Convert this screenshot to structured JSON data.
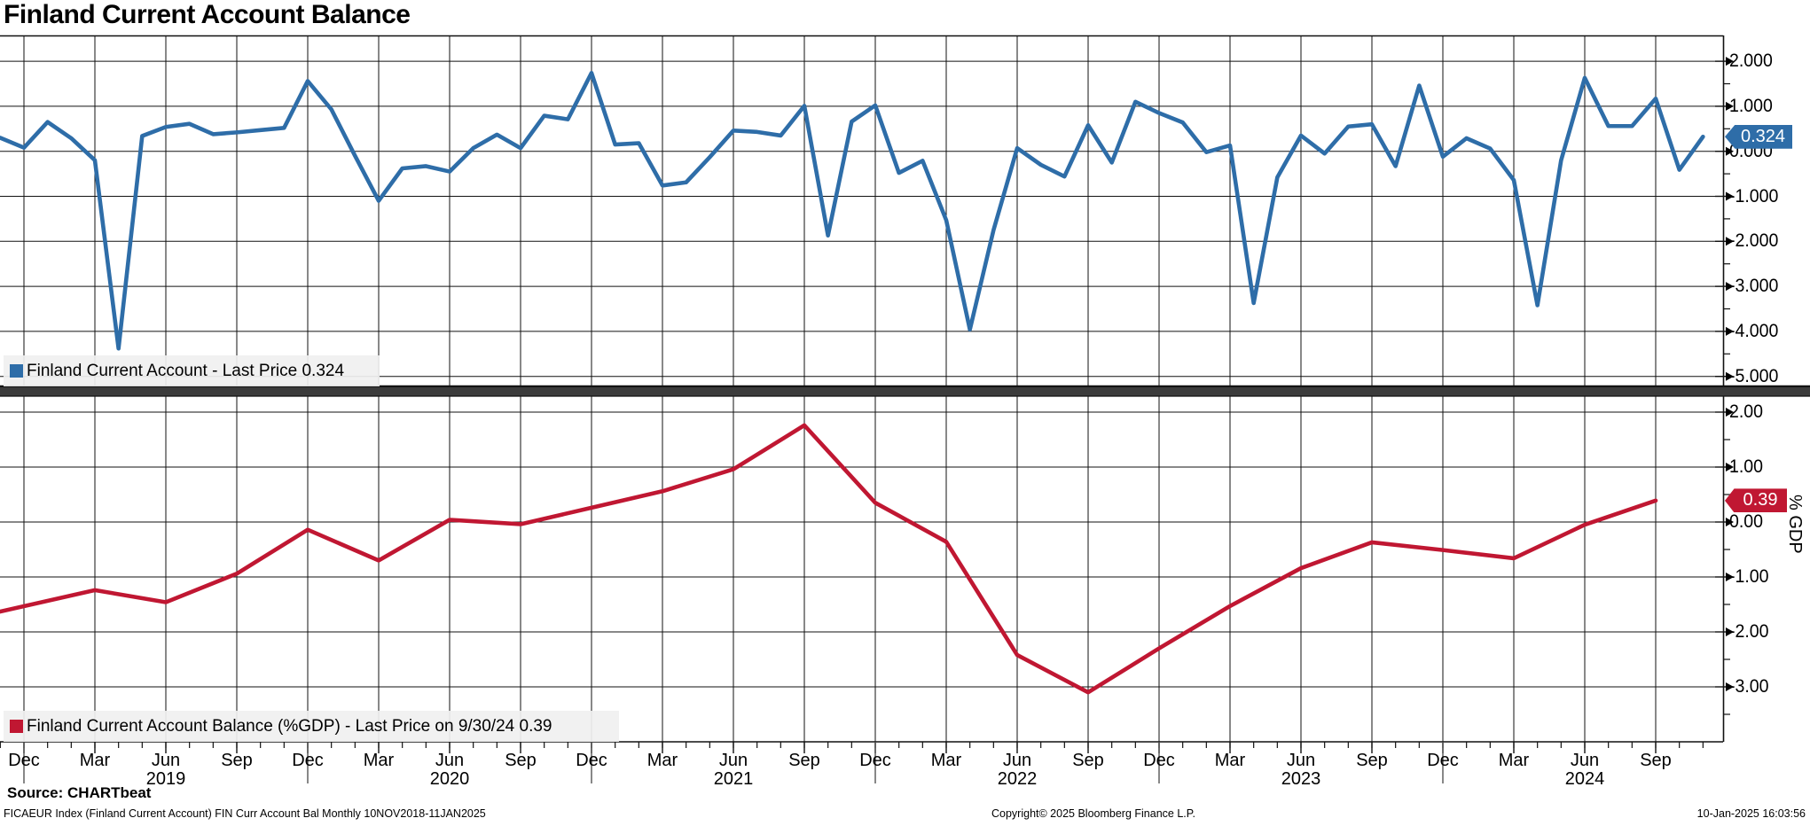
{
  "title": "Finland Current Account Balance",
  "colors": {
    "blue_line": "#2e6da8",
    "red_line": "#c01732",
    "grid": "#111111",
    "separator_band": "#3b3b3b",
    "legend_bg": "#f0f0f0"
  },
  "top_panel": {
    "legend": "Finland Current Account - Last Price 0.324",
    "axis_ticks": [
      "2.000",
      "1.000",
      "0.000",
      "-1.000",
      "-2.000",
      "-3.000",
      "-4.000",
      "-5.000"
    ],
    "axis_tick_values": [
      2,
      1,
      0,
      -1,
      -2,
      -3,
      -4,
      -5
    ],
    "badge": "0.324",
    "badge_value": 0.324
  },
  "bottom_panel": {
    "legend": "Finland Current Account Balance (%GDP) - Last Price on 9/30/24 0.39",
    "axis_ticks": [
      "2.00",
      "1.00",
      "0.00",
      "-1.00",
      "-2.00",
      "-3.00"
    ],
    "axis_tick_values": [
      2,
      1,
      0,
      -1,
      -2,
      -3
    ],
    "badge": "0.39",
    "badge_value": 0.39,
    "axis_label": "% GDP"
  },
  "x_axis": {
    "quarter_labels": [
      "Dec",
      "Mar",
      "Jun",
      "Sep",
      "Dec",
      "Mar",
      "Jun",
      "Sep",
      "Dec",
      "Mar",
      "Jun",
      "Sep",
      "Dec",
      "Mar",
      "Jun",
      "Sep",
      "Dec",
      "Mar",
      "Jun",
      "Sep",
      "Dec",
      "Mar",
      "Jun",
      "Sep"
    ],
    "year_labels": [
      "2019",
      "2020",
      "2021",
      "2022",
      "2023",
      "2024"
    ]
  },
  "footer": {
    "source": "Source: CHARTbeat",
    "ticker_line": "FICAEUR Index (Finland Current Account) FIN Curr Account Bal  Monthly 10NOV2018-11JAN2025",
    "copyright": "Copyright© 2025 Bloomberg Finance L.P.",
    "timestamp": "10-Jan-2025 16:03:56"
  },
  "chart_data": [
    {
      "type": "line",
      "name": "Finland Current Account",
      "frequency": "monthly",
      "start": "Nov 2018",
      "end": "Nov 2024",
      "last_price": 0.324,
      "ylim": [
        -5.28,
        2.57
      ],
      "legend_position": "bottom-left",
      "grid": true,
      "values": [
        0.3,
        0.08,
        0.65,
        0.29,
        -0.2,
        -4.38,
        0.34,
        0.54,
        0.61,
        0.38,
        0.42,
        0.47,
        0.52,
        1.56,
        0.93,
        -0.1,
        -1.1,
        -0.38,
        -0.33,
        -0.45,
        0.07,
        0.37,
        0.07,
        0.79,
        0.71,
        1.74,
        0.15,
        0.18,
        -0.76,
        -0.69,
        -0.13,
        0.46,
        0.43,
        0.35,
        1.01,
        -1.87,
        0.66,
        1.02,
        -0.48,
        -0.21,
        -1.53,
        -3.96,
        -1.75,
        0.07,
        -0.3,
        -0.56,
        0.58,
        -0.25,
        1.1,
        0.85,
        0.64,
        -0.02,
        0.13,
        -3.37,
        -0.58,
        0.35,
        -0.05,
        0.55,
        0.6,
        -0.33,
        1.46,
        -0.12,
        0.29,
        0.06,
        -0.64,
        -3.42,
        -0.2,
        1.63,
        0.56,
        0.56,
        1.17,
        -0.41,
        0.324
      ]
    },
    {
      "type": "line",
      "name": "Finland Current Account Balance (%GDP)",
      "frequency": "quarterly",
      "last_price_date": "9/30/24",
      "last_price": 0.39,
      "ylabel": "% GDP",
      "ylim": [
        -4.0,
        2.3
      ],
      "grid": true,
      "points_month_value": [
        [
          0,
          -1.63
        ],
        [
          4,
          -1.24
        ],
        [
          7,
          -1.46
        ],
        [
          10,
          -0.94
        ],
        [
          13,
          -0.14
        ],
        [
          16,
          -0.7
        ],
        [
          19,
          0.04
        ],
        [
          22,
          -0.04
        ],
        [
          25,
          0.26
        ],
        [
          28,
          0.56
        ],
        [
          31,
          0.96
        ],
        [
          34,
          1.76
        ],
        [
          37,
          0.35
        ],
        [
          40,
          -0.36
        ],
        [
          43,
          -2.42
        ],
        [
          46,
          -3.1
        ],
        [
          49,
          -2.3
        ],
        [
          52,
          -1.53
        ],
        [
          55,
          -0.84
        ],
        [
          58,
          -0.37
        ],
        [
          61,
          -0.51
        ],
        [
          64,
          -0.66
        ],
        [
          67,
          -0.05
        ],
        [
          70,
          0.39
        ]
      ]
    }
  ]
}
